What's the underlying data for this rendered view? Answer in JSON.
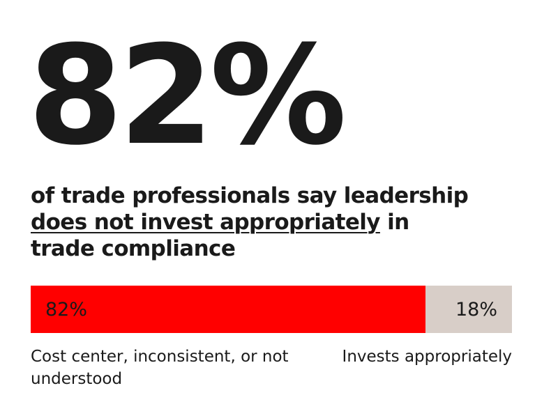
{
  "headline": {
    "stat": "82%",
    "line1": "of trade professionals say leadership",
    "line2_underlined": "does not invest appropriately",
    "line2_rest": " in",
    "line3": "trade compliance"
  },
  "colors": {
    "text": "#1a1a1a",
    "accent": "#ff0000",
    "secondary": "#d8cec8"
  },
  "chart_data": {
    "type": "bar",
    "orientation": "horizontal-stacked",
    "categories": [
      "Cost center, inconsistent, or not understood",
      "Invests appropriately"
    ],
    "values": [
      82,
      18
    ],
    "data_labels": [
      "82%",
      "18%"
    ],
    "colors": [
      "#ff0000",
      "#d8cec8"
    ],
    "grid": false,
    "legend": "none"
  }
}
